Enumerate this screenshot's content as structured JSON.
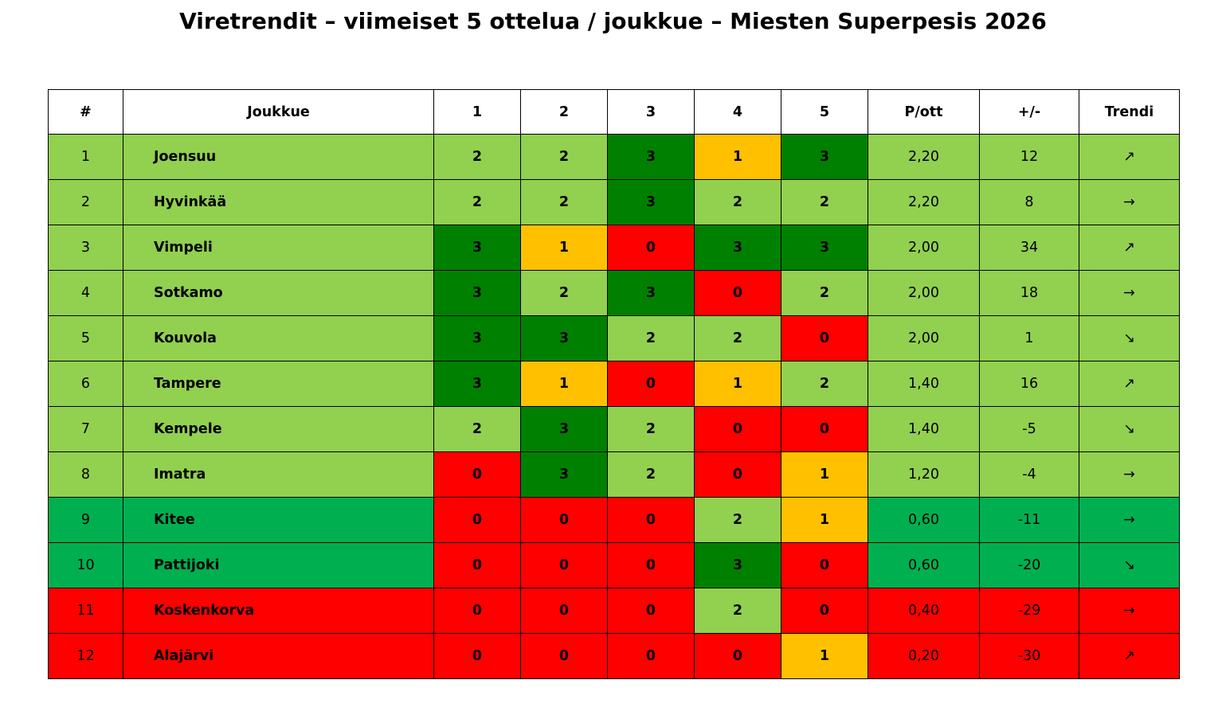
{
  "title": "Viretrendit – viimeiset 5 ottelua / joukkue – Miesten Superpesis 2026",
  "colors": {
    "3": "#008000",
    "2": "#92d050",
    "1": "#ffc000",
    "0": "#ff0000",
    "zone_top": "#92d050",
    "zone_mid": "#00b050",
    "zone_bottom": "#ff0000"
  },
  "chart_data": {
    "type": "table",
    "columns": [
      "#",
      "Joukkue",
      "1",
      "2",
      "3",
      "4",
      "5",
      "P/ott",
      "+/-",
      "Trendi"
    ],
    "rows": [
      {
        "rank": "1",
        "team": "Joensuu",
        "games": [
          2,
          2,
          3,
          1,
          3
        ],
        "pts_per_game": "2,20",
        "diff": "12",
        "trend": "↗",
        "zone": "top"
      },
      {
        "rank": "2",
        "team": "Hyvinkää",
        "games": [
          2,
          2,
          3,
          2,
          2
        ],
        "pts_per_game": "2,20",
        "diff": "8",
        "trend": "→",
        "zone": "top"
      },
      {
        "rank": "3",
        "team": "Vimpeli",
        "games": [
          3,
          1,
          0,
          3,
          3
        ],
        "pts_per_game": "2,00",
        "diff": "34",
        "trend": "↗",
        "zone": "top"
      },
      {
        "rank": "4",
        "team": "Sotkamo",
        "games": [
          3,
          2,
          3,
          0,
          2
        ],
        "pts_per_game": "2,00",
        "diff": "18",
        "trend": "→",
        "zone": "top"
      },
      {
        "rank": "5",
        "team": "Kouvola",
        "games": [
          3,
          3,
          2,
          2,
          0
        ],
        "pts_per_game": "2,00",
        "diff": "1",
        "trend": "↘",
        "zone": "top"
      },
      {
        "rank": "6",
        "team": "Tampere",
        "games": [
          3,
          1,
          0,
          1,
          2
        ],
        "pts_per_game": "1,40",
        "diff": "16",
        "trend": "↗",
        "zone": "top"
      },
      {
        "rank": "7",
        "team": "Kempele",
        "games": [
          2,
          3,
          2,
          0,
          0
        ],
        "pts_per_game": "1,40",
        "diff": "-5",
        "trend": "↘",
        "zone": "top"
      },
      {
        "rank": "8",
        "team": "Imatra",
        "games": [
          0,
          3,
          2,
          0,
          1
        ],
        "pts_per_game": "1,20",
        "diff": "-4",
        "trend": "→",
        "zone": "top"
      },
      {
        "rank": "9",
        "team": "Kitee",
        "games": [
          0,
          0,
          0,
          2,
          1
        ],
        "pts_per_game": "0,60",
        "diff": "-11",
        "trend": "→",
        "zone": "mid"
      },
      {
        "rank": "10",
        "team": "Pattijoki",
        "games": [
          0,
          0,
          0,
          3,
          0
        ],
        "pts_per_game": "0,60",
        "diff": "-20",
        "trend": "↘",
        "zone": "mid"
      },
      {
        "rank": "11",
        "team": "Koskenkorva",
        "games": [
          0,
          0,
          0,
          2,
          0
        ],
        "pts_per_game": "0,40",
        "diff": "-29",
        "trend": "→",
        "zone": "bottom"
      },
      {
        "rank": "12",
        "team": "Alajärvi",
        "games": [
          0,
          0,
          0,
          0,
          1
        ],
        "pts_per_game": "0,20",
        "diff": "-30",
        "trend": "↗",
        "zone": "bottom"
      }
    ]
  }
}
